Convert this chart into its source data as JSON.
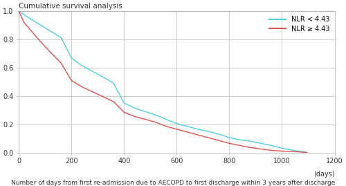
{
  "title": "Cumulative survival analysis",
  "xlabel": "Number of days from first re-admission due to AECOPD to first discharge within 3 years after discharge",
  "xlabel_days": "(days)",
  "xlim": [
    0,
    1200
  ],
  "ylim": [
    0.0,
    1.0
  ],
  "xticks": [
    0,
    200,
    400,
    600,
    800,
    1000,
    1200
  ],
  "yticks": [
    0.0,
    0.2,
    0.4,
    0.6,
    0.8,
    1.0
  ],
  "grid_color": "#cccccc",
  "background_color": "#ffffff",
  "legend_labels": [
    "NLR < 4.43",
    "NLR ≥ 4.43"
  ],
  "legend_colors": [
    "#4dcfdf",
    "#e05050"
  ],
  "curve_nlr_low_x": [
    0,
    20,
    50,
    80,
    120,
    160,
    200,
    240,
    280,
    320,
    360,
    400,
    440,
    480,
    520,
    560,
    600,
    640,
    680,
    720,
    760,
    800,
    840,
    880,
    920,
    960,
    1000,
    1030,
    1060,
    1080,
    1095
  ],
  "curve_nlr_low_y": [
    1.0,
    0.975,
    0.94,
    0.905,
    0.86,
    0.815,
    0.67,
    0.615,
    0.575,
    0.535,
    0.49,
    0.35,
    0.315,
    0.29,
    0.265,
    0.235,
    0.205,
    0.185,
    0.165,
    0.15,
    0.13,
    0.105,
    0.09,
    0.08,
    0.065,
    0.05,
    0.03,
    0.02,
    0.01,
    0.005,
    0.0
  ],
  "curve_nlr_high_x": [
    0,
    20,
    50,
    80,
    120,
    160,
    200,
    240,
    280,
    320,
    360,
    400,
    440,
    480,
    520,
    560,
    600,
    640,
    680,
    720,
    760,
    800,
    840,
    880,
    920,
    960,
    1000,
    1030,
    1060,
    1080,
    1095
  ],
  "curve_nlr_high_y": [
    1.0,
    0.92,
    0.855,
    0.79,
    0.71,
    0.635,
    0.51,
    0.465,
    0.43,
    0.395,
    0.36,
    0.285,
    0.255,
    0.235,
    0.215,
    0.185,
    0.165,
    0.145,
    0.125,
    0.105,
    0.085,
    0.065,
    0.05,
    0.035,
    0.025,
    0.015,
    0.01,
    0.008,
    0.005,
    0.002,
    0.0
  ]
}
